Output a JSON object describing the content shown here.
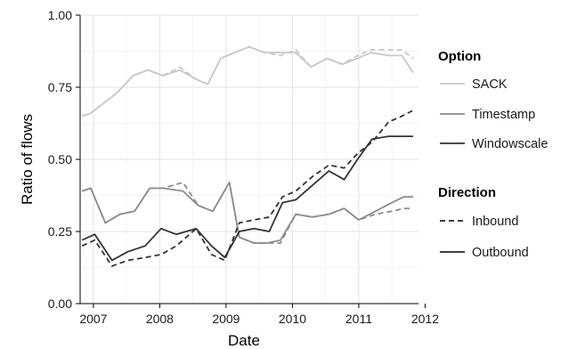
{
  "chart_data": {
    "type": "line",
    "title": "",
    "xlabel": "Date",
    "ylabel": "Ratio of flows",
    "xlim": [
      2006.8,
      2011.9
    ],
    "ylim": [
      0.0,
      1.0
    ],
    "x_ticks": [
      2007,
      2008,
      2009,
      2010,
      2011,
      2012
    ],
    "x_tick_labels": [
      "2007",
      "2008",
      "2009",
      "2010",
      "2011",
      "2012"
    ],
    "y_ticks": [
      0.0,
      0.25,
      0.5,
      0.75,
      1.0
    ],
    "y_tick_labels": [
      "0.00",
      "0.25",
      "0.50",
      "0.75",
      "1.00"
    ],
    "grid": true,
    "legend_position": "right",
    "legend": {
      "option_title": "Option",
      "options": [
        {
          "label": "SACK",
          "color": "#c8c8c8"
        },
        {
          "label": "Timestamp",
          "color": "#8c8c8c"
        },
        {
          "label": "Windowscale",
          "color": "#333333"
        }
      ],
      "direction_title": "Direction",
      "directions": [
        {
          "label": "Inbound",
          "dash": "dashed"
        },
        {
          "label": "Outbound",
          "dash": "solid"
        }
      ]
    },
    "series": [
      {
        "name": "SACK",
        "direction": "Inbound",
        "color": "#c8c8c8",
        "dash": "dashed",
        "x": [
          2006.83,
          2006.96,
          2007.35,
          2007.6,
          2007.82,
          2008.05,
          2008.3,
          2008.53,
          2008.72,
          2008.92,
          2009.13,
          2009.35,
          2009.58,
          2009.82,
          2010.05,
          2010.28,
          2010.52,
          2010.75,
          2010.98,
          2011.18,
          2011.45,
          2011.65,
          2011.82
        ],
        "y": [
          0.65,
          0.66,
          0.73,
          0.79,
          0.81,
          0.79,
          0.82,
          0.78,
          0.76,
          0.85,
          0.87,
          0.89,
          0.87,
          0.86,
          0.88,
          0.82,
          0.85,
          0.83,
          0.86,
          0.88,
          0.88,
          0.88,
          0.85
        ]
      },
      {
        "name": "SACK",
        "direction": "Outbound",
        "color": "#c8c8c8",
        "dash": "solid",
        "x": [
          2006.83,
          2006.96,
          2007.35,
          2007.6,
          2007.82,
          2008.05,
          2008.3,
          2008.53,
          2008.72,
          2008.92,
          2009.13,
          2009.35,
          2009.58,
          2009.82,
          2010.05,
          2010.28,
          2010.52,
          2010.75,
          2010.98,
          2011.18,
          2011.45,
          2011.65,
          2011.82
        ],
        "y": [
          0.65,
          0.66,
          0.73,
          0.79,
          0.81,
          0.79,
          0.81,
          0.78,
          0.76,
          0.85,
          0.87,
          0.89,
          0.87,
          0.87,
          0.87,
          0.82,
          0.85,
          0.83,
          0.85,
          0.87,
          0.86,
          0.86,
          0.8
        ]
      },
      {
        "name": "Timestamp",
        "direction": "Inbound",
        "color": "#8c8c8c",
        "dash": "dashed",
        "x": [
          2006.83,
          2006.96,
          2007.18,
          2007.4,
          2007.62,
          2007.85,
          2008.05,
          2008.35,
          2008.58,
          2008.8,
          2009.05,
          2009.2,
          2009.42,
          2009.62,
          2009.82,
          2010.05,
          2010.3,
          2010.55,
          2010.78,
          2011.0,
          2011.25,
          2011.5,
          2011.68,
          2011.82
        ],
        "y": [
          0.39,
          0.4,
          0.28,
          0.31,
          0.32,
          0.4,
          0.4,
          0.42,
          0.34,
          0.32,
          0.42,
          0.23,
          0.21,
          0.21,
          0.21,
          0.31,
          0.3,
          0.31,
          0.33,
          0.29,
          0.31,
          0.32,
          0.33,
          0.33
        ]
      },
      {
        "name": "Timestamp",
        "direction": "Outbound",
        "color": "#8c8c8c",
        "dash": "solid",
        "x": [
          2006.83,
          2006.96,
          2007.18,
          2007.4,
          2007.62,
          2007.85,
          2008.05,
          2008.35,
          2008.58,
          2008.8,
          2009.05,
          2009.2,
          2009.42,
          2009.62,
          2009.82,
          2010.05,
          2010.3,
          2010.55,
          2010.78,
          2011.0,
          2011.25,
          2011.5,
          2011.68,
          2011.82
        ],
        "y": [
          0.39,
          0.4,
          0.28,
          0.31,
          0.32,
          0.4,
          0.4,
          0.39,
          0.34,
          0.32,
          0.42,
          0.23,
          0.21,
          0.21,
          0.22,
          0.31,
          0.3,
          0.31,
          0.33,
          0.29,
          0.32,
          0.35,
          0.37,
          0.37
        ]
      },
      {
        "name": "Windowscale",
        "direction": "Inbound",
        "color": "#333333",
        "dash": "dashed",
        "x": [
          2006.83,
          2007.02,
          2007.28,
          2007.52,
          2007.78,
          2008.02,
          2008.25,
          2008.55,
          2008.78,
          2008.98,
          2009.2,
          2009.42,
          2009.65,
          2009.85,
          2010.05,
          2010.3,
          2010.55,
          2010.78,
          2010.98,
          2011.2,
          2011.45,
          2011.65,
          2011.82
        ],
        "y": [
          0.2,
          0.22,
          0.13,
          0.15,
          0.16,
          0.17,
          0.2,
          0.26,
          0.17,
          0.15,
          0.28,
          0.29,
          0.3,
          0.37,
          0.39,
          0.44,
          0.48,
          0.47,
          0.52,
          0.56,
          0.63,
          0.65,
          0.67
        ]
      },
      {
        "name": "Windowscale",
        "direction": "Outbound",
        "color": "#333333",
        "dash": "solid",
        "x": [
          2006.83,
          2007.02,
          2007.28,
          2007.52,
          2007.78,
          2008.02,
          2008.25,
          2008.55,
          2008.78,
          2008.98,
          2009.2,
          2009.42,
          2009.65,
          2009.85,
          2010.05,
          2010.3,
          2010.55,
          2010.78,
          2010.98,
          2011.2,
          2011.45,
          2011.65,
          2011.82
        ],
        "y": [
          0.22,
          0.24,
          0.15,
          0.18,
          0.2,
          0.26,
          0.24,
          0.26,
          0.2,
          0.16,
          0.25,
          0.26,
          0.25,
          0.35,
          0.36,
          0.41,
          0.46,
          0.43,
          0.5,
          0.57,
          0.58,
          0.58,
          0.58
        ]
      }
    ]
  }
}
